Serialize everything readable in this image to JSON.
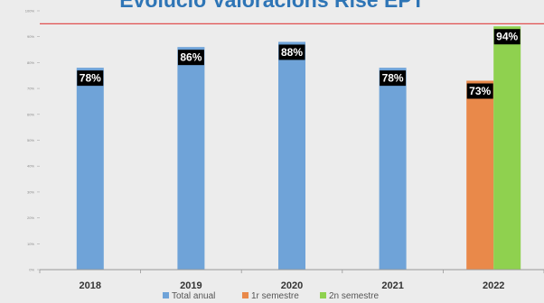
{
  "title": "Evolució Valoracions Rise EPT",
  "colors": {
    "total_anual": "#6fa3d8",
    "semestre_1": "#e9894a",
    "semestre_2": "#8fd14f",
    "target_line": "#e05050"
  },
  "chart_data": {
    "type": "bar",
    "title": "Evolució Valoracions Rise EPT",
    "categories": [
      "2018",
      "2019",
      "2020",
      "2021",
      "2022"
    ],
    "series": [
      {
        "name": "Total anual",
        "values": [
          78,
          86,
          88,
          78,
          null
        ],
        "labels": [
          "78%",
          "86%",
          "88%",
          "78%",
          ""
        ]
      },
      {
        "name": "1r semestre",
        "values": [
          null,
          null,
          null,
          null,
          73
        ],
        "labels": [
          "",
          "",
          "",
          "",
          "73%"
        ]
      },
      {
        "name": "2n semestre",
        "values": [
          null,
          null,
          null,
          null,
          94
        ],
        "labels": [
          "",
          "",
          "",
          "",
          "94%"
        ]
      }
    ],
    "yticks": [
      "0%",
      "10%",
      "20%",
      "30%",
      "40%",
      "50%",
      "60%",
      "70%",
      "80%",
      "90%",
      "100%"
    ],
    "ylim": [
      0,
      100
    ],
    "reference_line": 95,
    "legend_position": "bottom",
    "grid": false
  }
}
